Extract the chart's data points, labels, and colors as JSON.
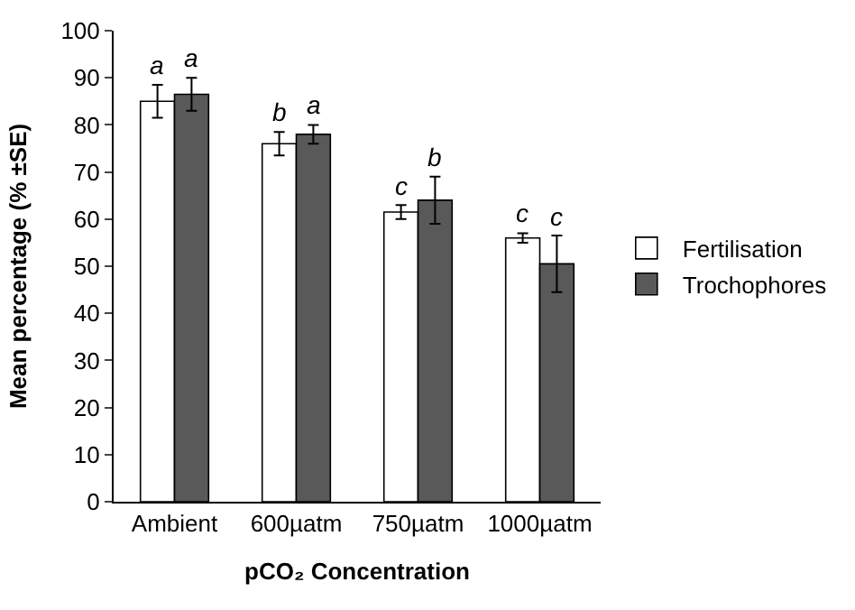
{
  "chart_data": {
    "type": "bar",
    "xlabel": "pCO₂ Concentration",
    "ylabel": "Mean percentage (% ±SE)",
    "categories": [
      "Ambient",
      "600µatm",
      "750µatm",
      "1000µatm"
    ],
    "series": [
      {
        "name": "Fertilisation",
        "color": "#ffffff",
        "values": [
          85,
          76,
          61.5,
          56
        ],
        "errors": [
          3.5,
          2.5,
          1.5,
          1
        ]
      },
      {
        "name": "Trochophores",
        "color": "#595959",
        "values": [
          86.5,
          78,
          64,
          50.5
        ],
        "errors": [
          3.5,
          2,
          5,
          6
        ]
      }
    ],
    "annotations": [
      "a",
      "a",
      "b",
      "a",
      "c",
      "b",
      "c",
      "c"
    ],
    "ylim": [
      0,
      100
    ],
    "yticks": [
      0,
      10,
      20,
      30,
      40,
      50,
      60,
      70,
      80,
      90,
      100
    ],
    "legend": "right"
  }
}
